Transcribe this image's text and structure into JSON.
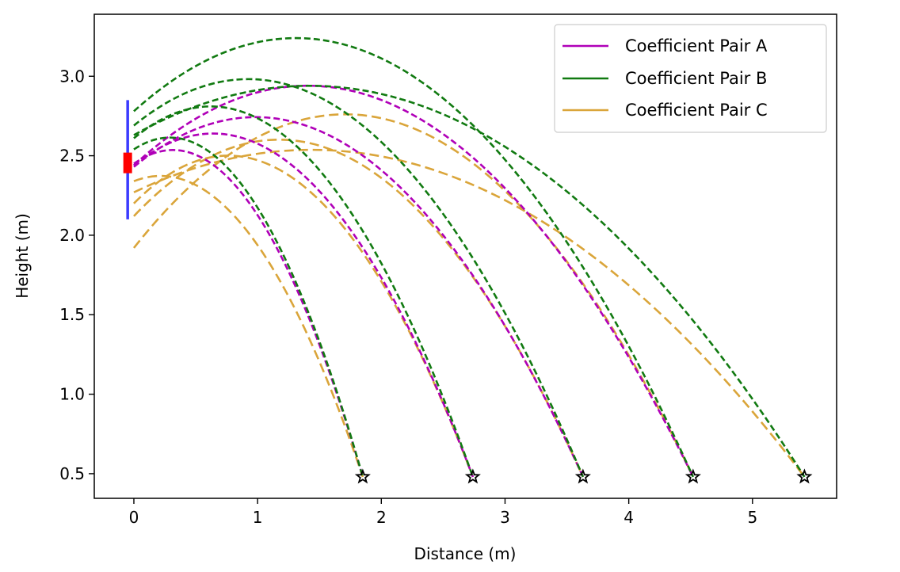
{
  "chart_data": {
    "type": "line",
    "title": "",
    "xlabel": "Distance (m)",
    "ylabel": "Height (m)",
    "xlim": [
      -0.32,
      5.68
    ],
    "ylim": [
      0.345,
      3.39
    ],
    "x_ticks": [
      0,
      1,
      2,
      3,
      4,
      5
    ],
    "y_ticks": [
      0.5,
      1.0,
      1.5,
      2.0,
      2.5,
      3.0
    ],
    "x_tick_labels": [
      "0",
      "1",
      "2",
      "3",
      "4",
      "5"
    ],
    "y_tick_labels": [
      "0.5",
      "1.0",
      "1.5",
      "2.0",
      "2.5",
      "3.0"
    ],
    "grid": false,
    "legend_position": "top-right",
    "series": [
      {
        "name": "Coefficient Pair A",
        "color": "#b000b8",
        "dash": "short",
        "trajectories": [
          {
            "start": [
              0.0,
              2.45
            ],
            "apex": [
              0.45,
              2.52
            ],
            "end": [
              1.85,
              0.48
            ]
          },
          {
            "start": [
              0.0,
              2.44
            ],
            "apex": [
              0.78,
              2.63
            ],
            "end": [
              2.74,
              0.48
            ]
          },
          {
            "start": [
              0.0,
              2.43
            ],
            "apex": [
              1.08,
              2.74
            ],
            "end": [
              3.63,
              0.48
            ]
          },
          {
            "start": [
              0.0,
              2.44
            ],
            "apex": [
              1.45,
              2.94
            ],
            "end": [
              4.52,
              0.48
            ]
          }
        ]
      },
      {
        "name": "Coefficient Pair B",
        "color": "#117a11",
        "dash": "short",
        "trajectories": [
          {
            "start": [
              0.0,
              2.54
            ],
            "apex": [
              0.22,
              2.61
            ],
            "end": [
              1.85,
              0.48
            ]
          },
          {
            "start": [
              0.0,
              2.61
            ],
            "apex": [
              0.6,
              2.81
            ],
            "end": [
              2.74,
              0.48
            ]
          },
          {
            "start": [
              0.0,
              2.69
            ],
            "apex": [
              1.0,
              2.98
            ],
            "end": [
              3.63,
              0.48
            ]
          },
          {
            "start": [
              0.0,
              2.78
            ],
            "apex": [
              1.3,
              3.24
            ],
            "end": [
              4.52,
              0.48
            ]
          },
          {
            "start": [
              0.0,
              2.63
            ],
            "apex": [
              1.45,
              2.94
            ],
            "end": [
              5.42,
              0.48
            ]
          }
        ]
      },
      {
        "name": "Coefficient Pair C",
        "color": "#daa53a",
        "dash": "long",
        "trajectories": [
          {
            "start": [
              0.0,
              2.34
            ],
            "apex": [
              0.15,
              2.37
            ],
            "end": [
              1.85,
              0.48
            ]
          },
          {
            "start": [
              0.0,
              2.2
            ],
            "apex": [
              0.8,
              2.5
            ],
            "end": [
              2.74,
              0.48
            ]
          },
          {
            "start": [
              0.0,
              2.12
            ],
            "apex": [
              1.35,
              2.59
            ],
            "end": [
              3.63,
              0.48
            ]
          },
          {
            "start": [
              0.0,
              1.92
            ],
            "apex": [
              1.9,
              2.75
            ],
            "end": [
              4.52,
              0.48
            ]
          },
          {
            "start": [
              0.0,
              2.27
            ],
            "apex": [
              1.2,
              2.53
            ],
            "end": [
              5.42,
              0.48
            ]
          }
        ]
      }
    ],
    "landing_points": [
      {
        "x": 1.85,
        "y": 0.48
      },
      {
        "x": 2.74,
        "y": 0.48
      },
      {
        "x": 3.63,
        "y": 0.48
      },
      {
        "x": 4.52,
        "y": 0.48
      },
      {
        "x": 5.42,
        "y": 0.48
      }
    ],
    "launcher": {
      "x": -0.05,
      "blue_range": [
        2.1,
        2.85
      ],
      "red_range": [
        2.39,
        2.52
      ],
      "blue_color": "#3b3bff",
      "red_color": "#ff0000"
    }
  }
}
